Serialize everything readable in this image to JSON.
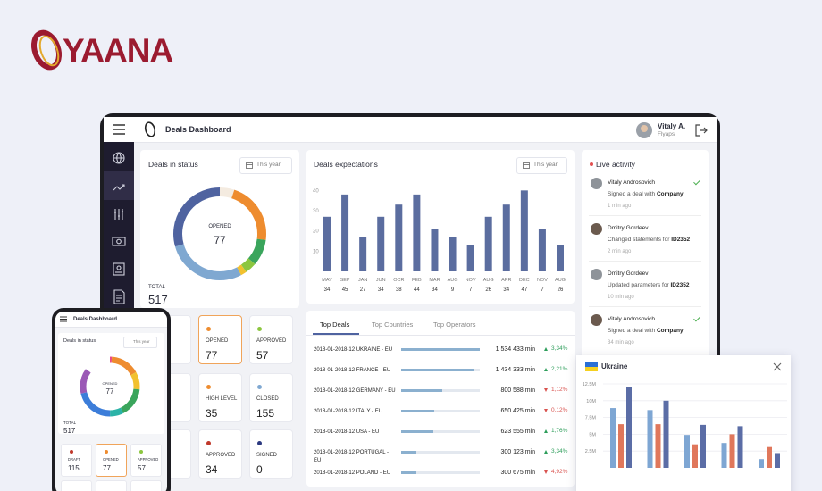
{
  "logo": "YAANA",
  "header": {
    "title": "Deals Dashboard",
    "user_name": "Vitaly A.",
    "user_company": "Flyaps"
  },
  "deals_in_status": {
    "title": "Deals in status",
    "period": "This year",
    "center_label": "OPENED",
    "center_value": 77,
    "total_label": "TOTAL",
    "total": 517,
    "cards": [
      {
        "label": "OPENED",
        "value": 77,
        "dot": "#ee8c2f",
        "highlight": true
      },
      {
        "label": "APPROVED",
        "value": 57,
        "dot": "#8cc63f"
      },
      {
        "label": "HIGH LEVEL",
        "value": 35,
        "dot": "#ee8c2f"
      },
      {
        "label": "CLOSED",
        "value": 155,
        "dot": "#7fa8d1"
      },
      {
        "label": "APPROVED",
        "value": 34,
        "dot": "#c0392b"
      },
      {
        "label": "SIGNED",
        "value": 0,
        "dot": "#2c3a80"
      }
    ]
  },
  "deals_expectations": {
    "type": "bar",
    "title": "Deals expectations",
    "period": "This year",
    "categories": [
      "MAY",
      "SEP",
      "JAN",
      "JUN",
      "OCR",
      "FEB",
      "MAR",
      "AUG",
      "NOV",
      "AUG",
      "APR",
      "DEC",
      "NOV",
      "AUG"
    ],
    "values": [
      27,
      38,
      17,
      27,
      33,
      38,
      21,
      17,
      13,
      27,
      33,
      40,
      21,
      13
    ],
    "counts": [
      34,
      45,
      27,
      34,
      38,
      44,
      34,
      9,
      7,
      26,
      34,
      47,
      7,
      26
    ],
    "color": "#5b6d9f",
    "ylim": [
      0,
      45
    ],
    "yticks": [
      10,
      20,
      30,
      40
    ]
  },
  "top_deals": {
    "tabs": [
      "Top Deals",
      "Top Countries",
      "Top Operators"
    ],
    "active_tab": 0,
    "unit": "min",
    "rows": [
      {
        "name": "2018-01-2018-12 UKRAINE - EU",
        "value": 1534433,
        "value_label": "1 534 433",
        "change": 3.34,
        "change_label": "3,34%",
        "trend": "up"
      },
      {
        "name": "2018-01-2018-12 FRANCE - EU",
        "value": 1434333,
        "value_label": "1 434 333",
        "change": 2.21,
        "change_label": "2,21%",
        "trend": "up"
      },
      {
        "name": "2018-01-2018-12 GERMANY - EU",
        "value": 800588,
        "value_label": "800 588",
        "change": 1.12,
        "change_label": "1,12%",
        "trend": "down"
      },
      {
        "name": "2018-01-2018-12 ITALY - EU",
        "value": 650425,
        "value_label": "650 425",
        "change": 0.12,
        "change_label": "0,12%",
        "trend": "down"
      },
      {
        "name": "2018-01-2018-12 USA - EU",
        "value": 623555,
        "value_label": "623 555",
        "change": 1.76,
        "change_label": "1,76%",
        "trend": "up"
      },
      {
        "name": "2018-01-2018-12 PORTUGAL - EU",
        "value": 300123,
        "value_label": "300 123",
        "change": 3.34,
        "change_label": "3,34%",
        "trend": "up"
      },
      {
        "name": "2018-01-2018-12 POLAND - EU",
        "value": 300675,
        "value_label": "300 675",
        "change": 4.92,
        "change_label": "4,92%",
        "trend": "down"
      }
    ]
  },
  "live_activity": {
    "title": "Live activity",
    "items": [
      {
        "name": "Vitaly Androsovich",
        "action": "Signed a deal with",
        "target": "Company",
        "time": "1 min ago",
        "checked": true
      },
      {
        "name": "Dmitry Gordeev",
        "action": "Changed statements for",
        "target": "ID2352",
        "time": "2 min ago",
        "checked": false
      },
      {
        "name": "Dmitry Gordeev",
        "action": "Updated parameters for",
        "target": "ID2352",
        "time": "10 min ago",
        "checked": false
      },
      {
        "name": "Vitaly Androsovich",
        "action": "Signed a deal with",
        "target": "Company",
        "time": "34 min ago",
        "checked": true
      }
    ]
  },
  "ukraine": {
    "type": "bar",
    "title": "Ukraine",
    "ylim": [
      0,
      12500000
    ],
    "yticks": [
      {
        "value": 2500000,
        "label": "2.5M"
      },
      {
        "value": 5000000,
        "label": "5M"
      },
      {
        "value": 7500000,
        "label": "7.5M"
      },
      {
        "value": 10000000,
        "label": "10M"
      },
      {
        "value": 12500000,
        "label": "12.5M"
      }
    ],
    "series": [
      {
        "color": "#7ea6d3",
        "values": [
          8900000,
          8600000,
          4900000,
          3700000,
          1300000
        ]
      },
      {
        "color": "#e0775b",
        "values": [
          6500000,
          6500000,
          3500000,
          5000000,
          3100000
        ]
      },
      {
        "color": "#5b6da6",
        "values": [
          12100000,
          10000000,
          6400000,
          6200000,
          2200000
        ]
      }
    ]
  },
  "phone": {
    "title": "Deals Dashboard",
    "section": "Deals in status",
    "period": "This year",
    "center_label": "OPENED",
    "center_value": 77,
    "total_label": "TOTAL",
    "total": 517,
    "cards": [
      {
        "label": "DRAFT",
        "value": 115,
        "dot": "#c0392b"
      },
      {
        "label": "OPENED",
        "value": 77,
        "dot": "#ee8c2f",
        "highlight": true
      },
      {
        "label": "APPROVED",
        "value": 57,
        "dot": "#8cc63f"
      }
    ]
  }
}
